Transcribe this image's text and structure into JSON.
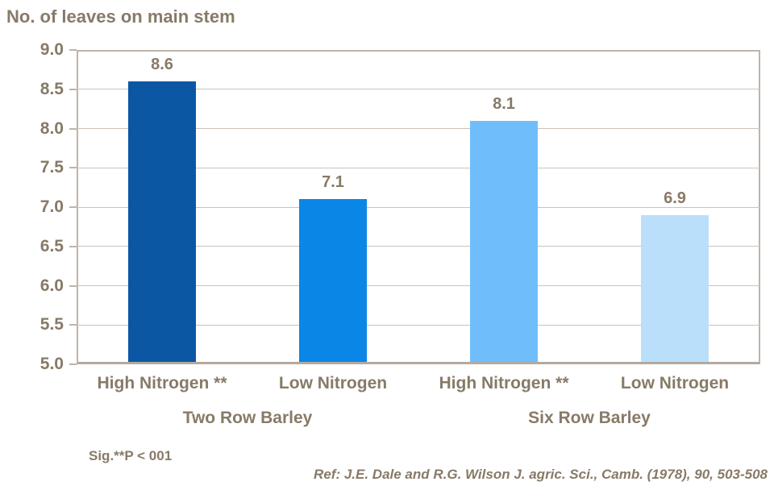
{
  "chart_data": {
    "type": "bar",
    "title": "No. of leaves on main stem",
    "categories": [
      "High Nitrogen **",
      "Low Nitrogen",
      "High Nitrogen **",
      "Low Nitrogen"
    ],
    "values": [
      8.6,
      7.1,
      8.1,
      6.9
    ],
    "value_labels": [
      "8.6",
      "7.1",
      "8.1",
      "6.9"
    ],
    "bar_colors": [
      "#0B57A4",
      "#0A87E6",
      "#6FBEFB",
      "#BADFFB"
    ],
    "groups": [
      {
        "label": "Two Row Barley",
        "slots": [
          0,
          1
        ]
      },
      {
        "label": "Six Row Barley",
        "slots": [
          2,
          3
        ]
      }
    ],
    "ylim": [
      5.0,
      9.0
    ],
    "ytick_step": 0.5,
    "ytick_labels": [
      "5.0",
      "5.5",
      "6.0",
      "6.5",
      "7.0",
      "7.5",
      "8.0",
      "8.5",
      "9.0"
    ],
    "grid": true,
    "legend": "none",
    "xlabel": "",
    "ylabel": "No. of leaves on main stem"
  },
  "footnotes": {
    "significance": "Sig.**P < 001",
    "reference": "Ref: J.E. Dale and R.G. Wilson J. agric. Sci., Camb. (1978), 90, 503-508"
  },
  "colors": {
    "text": "#877A67",
    "axis": "#BEB4A9",
    "gridline": "#CCC3B9",
    "background": "#FFFFFF"
  }
}
